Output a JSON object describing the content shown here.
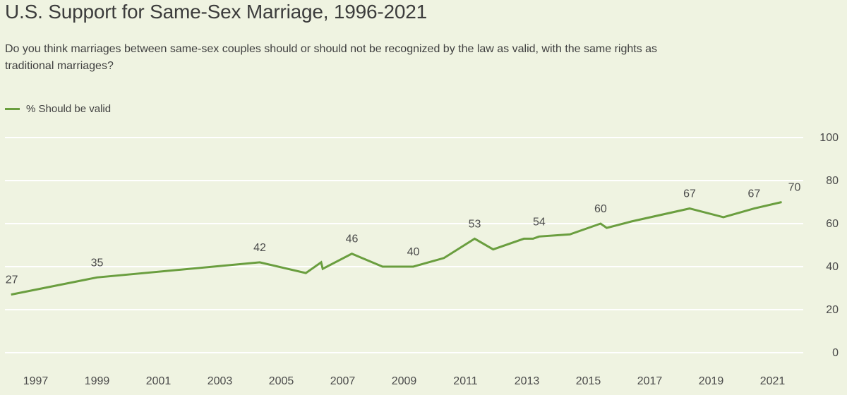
{
  "title": "U.S. Support for Same-Sex Marriage, 1996-2021",
  "subtitle": "Do you think marriages between same-sex couples should or should not be recognized by the law as valid, with the same rights as traditional marriages?",
  "legend": {
    "label": "% Should be valid"
  },
  "colors": {
    "line": "#6a9e3f",
    "grid": "#ffffff",
    "background": "#eff3e1",
    "text": "#4a4a4a"
  },
  "chart_data": {
    "type": "line",
    "title": "U.S. Support for Same-Sex Marriage, 1996-2021",
    "xlabel": "",
    "ylabel": "",
    "xlim": [
      1996,
      2022
    ],
    "ylim": [
      0,
      100
    ],
    "y_ticks": [
      0,
      20,
      40,
      60,
      80,
      100
    ],
    "x_ticks": [
      "1997",
      "1999",
      "2001",
      "2003",
      "2005",
      "2007",
      "2009",
      "2011",
      "2013",
      "2015",
      "2017",
      "2019",
      "2021"
    ],
    "grid": true,
    "legend_position": "top-left",
    "series": [
      {
        "name": "% Should be valid",
        "x": [
          1996.2,
          1999.0,
          2004.3,
          2005.8,
          2006.3,
          2006.35,
          2007.3,
          2008.3,
          2009.3,
          2010.3,
          2011.3,
          2011.9,
          2012.9,
          2013.2,
          2013.4,
          2014.4,
          2015.4,
          2015.6,
          2016.4,
          2018.3,
          2019.4,
          2020.4,
          2021.3
        ],
        "y": [
          27,
          35,
          42,
          37,
          42,
          39,
          46,
          40,
          40,
          44,
          53,
          48,
          53,
          53,
          54,
          55,
          60,
          58,
          61,
          67,
          63,
          67,
          70
        ]
      }
    ],
    "annotations": [
      {
        "x": 1996.2,
        "y": 27,
        "text": "27"
      },
      {
        "x": 1999.0,
        "y": 35,
        "text": "35"
      },
      {
        "x": 2004.3,
        "y": 42,
        "text": "42"
      },
      {
        "x": 2007.3,
        "y": 46,
        "text": "46"
      },
      {
        "x": 2009.3,
        "y": 40,
        "text": "40"
      },
      {
        "x": 2011.3,
        "y": 53,
        "text": "53"
      },
      {
        "x": 2013.4,
        "y": 54,
        "text": "54"
      },
      {
        "x": 2015.4,
        "y": 60,
        "text": "60"
      },
      {
        "x": 2018.3,
        "y": 67,
        "text": "67"
      },
      {
        "x": 2020.4,
        "y": 67,
        "text": "67"
      },
      {
        "x": 2021.3,
        "y": 70,
        "text": "70"
      }
    ]
  }
}
